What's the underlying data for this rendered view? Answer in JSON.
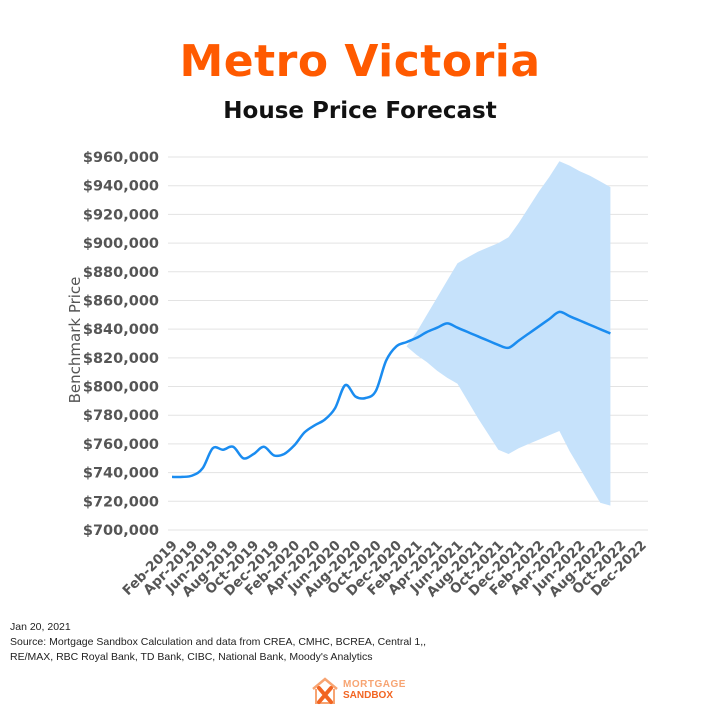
{
  "header": {
    "title": "Metro Victoria",
    "subtitle": "House Price Forecast"
  },
  "footer": {
    "date": "Jan 20, 2021",
    "source_line1": "Source: Mortgage Sandbox Calculation and data from CREA, CMHC, BCREA, Central 1,,",
    "source_line2": "RE/MAX, RBC Royal Bank, TD Bank, CIBC, National Bank, Moody's Analytics"
  },
  "logo": {
    "line1": "MORTGAGE",
    "line2": "SANDBOX",
    "icon": "house-x-logo-icon"
  },
  "colors": {
    "title": "#ff5a00",
    "line": "#1a8cf0",
    "band": "#c6e2fb",
    "grid": "#e3e3e3"
  },
  "chart_data": {
    "type": "line",
    "title": "Metro Victoria",
    "subtitle": "House Price Forecast",
    "xlabel": "",
    "ylabel": "Benchmark Price",
    "ylim": [
      700000,
      960000
    ],
    "yticks": [
      "$700,000",
      "$720,000",
      "$740,000",
      "$760,000",
      "$780,000",
      "$800,000",
      "$820,000",
      "$840,000",
      "$860,000",
      "$880,000",
      "$900,000",
      "$920,000",
      "$940,000",
      "$960,000"
    ],
    "xtick_labels": [
      "Feb-2019",
      "Apr-2019",
      "Jun-2019",
      "Aug-2019",
      "Oct-2019",
      "Dec-2019",
      "Feb-2020",
      "Apr-2020",
      "Jun-2020",
      "Aug-2020",
      "Oct-2020",
      "Dec-2020",
      "Feb-2021",
      "Apr-2021",
      "Jun-2021",
      "Aug-2021",
      "Oct-2021",
      "Dec-2021",
      "Feb-2022",
      "Apr-2022",
      "Jun-2022",
      "Aug-2022",
      "Oct-2022",
      "Dec-2022"
    ],
    "grid": true,
    "months": [
      "Feb-2019",
      "Mar-2019",
      "Apr-2019",
      "May-2019",
      "Jun-2019",
      "Jul-2019",
      "Aug-2019",
      "Sep-2019",
      "Oct-2019",
      "Nov-2019",
      "Dec-2019",
      "Jan-2020",
      "Feb-2020",
      "Mar-2020",
      "Apr-2020",
      "May-2020",
      "Jun-2020",
      "Jul-2020",
      "Aug-2020",
      "Sep-2020",
      "Oct-2020",
      "Nov-2020",
      "Dec-2020",
      "Jan-2021",
      "Feb-2021",
      "Mar-2021",
      "Apr-2021",
      "May-2021",
      "Jun-2021",
      "Jul-2021",
      "Aug-2021",
      "Sep-2021",
      "Oct-2021",
      "Nov-2021",
      "Dec-2021",
      "Jan-2022",
      "Feb-2022",
      "Mar-2022",
      "Apr-2022",
      "May-2022",
      "Jun-2022",
      "Jul-2022",
      "Aug-2022",
      "Sep-2022",
      "Oct-2022",
      "Nov-2022",
      "Dec-2022"
    ],
    "series": [
      {
        "values": [
          737000,
          737000,
          738000,
          743000,
          757000,
          756000,
          758000,
          750000,
          753000,
          758000,
          752000,
          753000,
          759000,
          768000,
          773000,
          777000,
          785000,
          801000,
          793000,
          792000,
          797000,
          818000,
          828000,
          831000,
          834000,
          838000,
          841000,
          844000,
          841000,
          838000,
          835000,
          832000,
          829000,
          827000,
          832000,
          837000,
          842000,
          847000,
          852000,
          849000,
          846000,
          843000,
          840000,
          837000
        ]
      }
    ],
    "band": {
      "x_start": "Jan-2021",
      "upper": [
        828000,
        838000,
        850000,
        862000,
        874000,
        886000,
        890000,
        894000,
        897000,
        900000,
        904000,
        914000,
        925000,
        936000,
        946000,
        957000,
        954000,
        950000,
        947000,
        943000,
        939000
      ],
      "lower": [
        828000,
        822000,
        817000,
        811000,
        806000,
        802000,
        790000,
        778000,
        767000,
        756000,
        753000,
        757000,
        760000,
        763000,
        766000,
        769000,
        755000,
        743000,
        731000,
        719000,
        717000
      ]
    }
  }
}
